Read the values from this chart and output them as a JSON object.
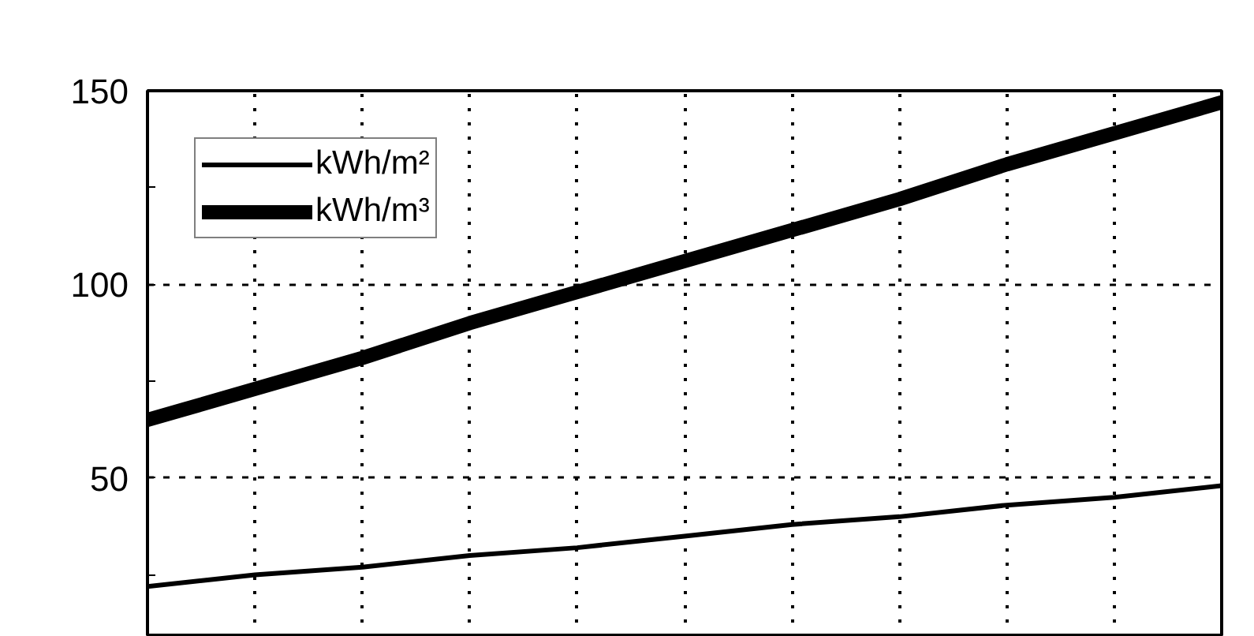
{
  "chart_data": {
    "type": "line",
    "categories": [
      null,
      null,
      null,
      null,
      null,
      null,
      null,
      null,
      null,
      null,
      null
    ],
    "ylim": [
      9,
      150
    ],
    "yticks": [
      {
        "value": 25,
        "label": null
      },
      50,
      {
        "value": 75,
        "label": null
      },
      100,
      {
        "value": 125,
        "label": null
      },
      150
    ],
    "tick_labels": "y",
    "grid": true,
    "legend": "top left",
    "marker": "none",
    "line_style": "solid",
    "series": [
      {
        "name": "kWh/m²",
        "color": "#000000",
        "values": [
          22,
          25,
          27,
          30,
          32,
          35,
          38,
          40,
          43,
          45,
          48
        ]
      },
      {
        "name": "kWh/m³",
        "color": "#000000",
        "values": [
          65,
          73,
          81,
          90,
          98,
          106,
          114,
          122,
          131,
          139,
          147
        ]
      }
    ]
  }
}
